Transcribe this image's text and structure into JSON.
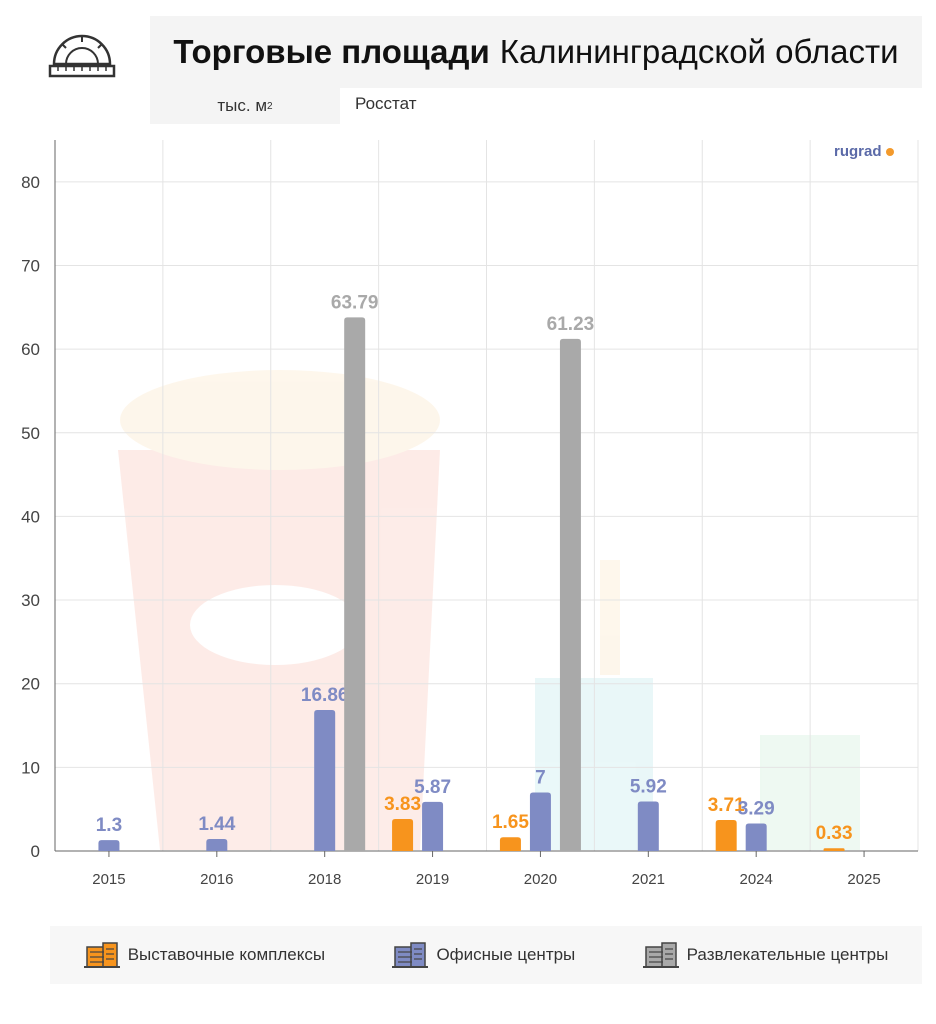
{
  "header": {
    "title_bold": "Торговые площади",
    "title_regular": "Калининградской области",
    "unit_main": "тыс. м",
    "unit_sup": "2",
    "source": "Росстат",
    "brand": "rugrad"
  },
  "colors": {
    "exhibition": "#f7941d",
    "office": "#7f8bc4",
    "entertainment": "#a9a9a9",
    "grid": "#e4e4e4",
    "axis": "#666666"
  },
  "icons": [
    "protractor-ruler-icon",
    "building-icon"
  ],
  "chart_data": {
    "type": "bar",
    "title": "Торговые площади Калининградской области",
    "ylabel": "",
    "xlabel": "",
    "ylim": [
      0,
      85
    ],
    "yticks": [
      "0",
      "10",
      "20",
      "30",
      "40",
      "50",
      "60",
      "70",
      "80"
    ],
    "categories": [
      "2015",
      "2016",
      "2018",
      "2019",
      "2020",
      "2021",
      "2024",
      "2025"
    ],
    "series": [
      {
        "name": "Выставочные комплексы",
        "color": "#f7941d",
        "values": [
          null,
          null,
          null,
          3.83,
          1.65,
          null,
          3.71,
          0.33
        ],
        "labels": [
          "",
          "",
          "",
          "3.83",
          "1.65",
          "",
          "3.71",
          "0.33"
        ]
      },
      {
        "name": "Офисные центры",
        "color": "#7f8bc4",
        "values": [
          1.3,
          1.44,
          16.86,
          5.87,
          7,
          5.92,
          3.29,
          null
        ],
        "labels": [
          "1.3",
          "1.44",
          "16.86",
          "5.87",
          "7",
          "5.92",
          "3.29",
          ""
        ]
      },
      {
        "name": "Развлекательные центры",
        "color": "#a9a9a9",
        "values": [
          null,
          null,
          63.79,
          null,
          61.23,
          null,
          null,
          null
        ],
        "labels": [
          "",
          "",
          "63.79",
          "",
          "61.23",
          "",
          "",
          ""
        ]
      }
    ],
    "grid": true,
    "legend": "bottom"
  }
}
